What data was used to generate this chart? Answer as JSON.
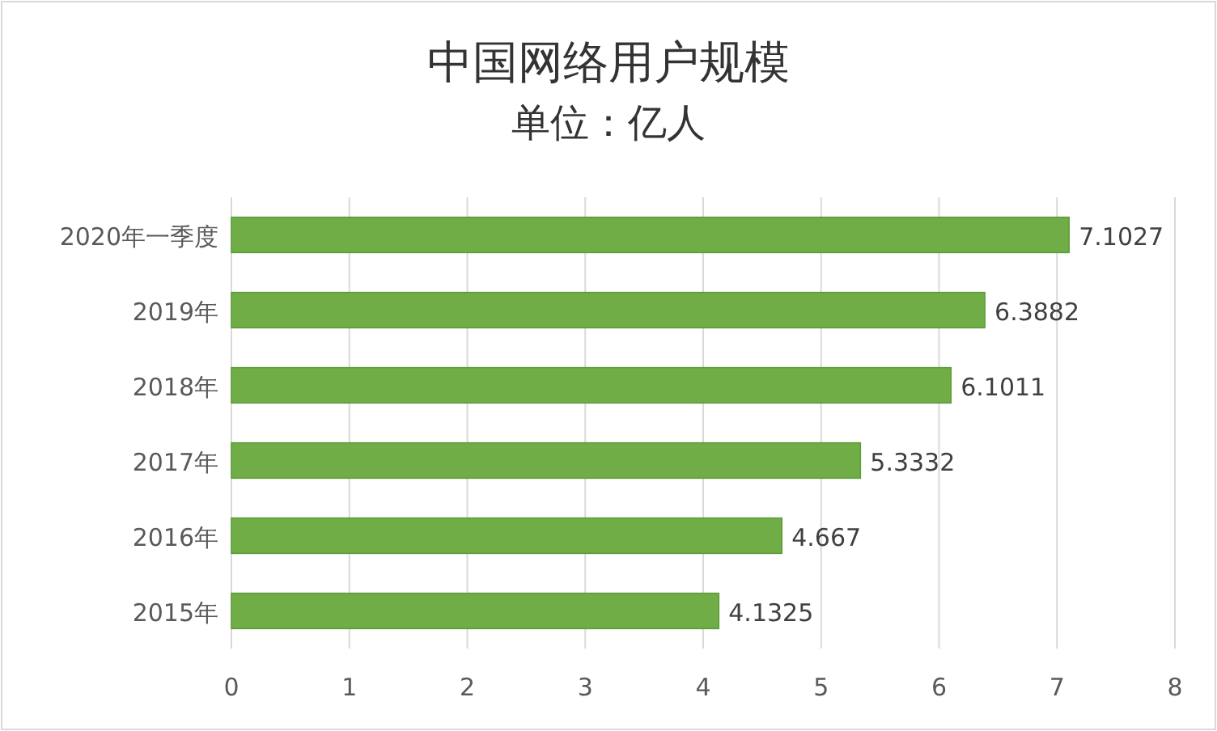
{
  "chart_data": {
    "type": "bar",
    "orientation": "horizontal",
    "title": "中国网络用户规模",
    "subtitle": "单位：亿人",
    "categories": [
      "2020年一季度",
      "2019年",
      "2018年",
      "2017年",
      "2016年",
      "2015年"
    ],
    "values": [
      7.1027,
      6.3882,
      6.1011,
      5.3332,
      4.667,
      4.1325
    ],
    "color": "#70ad47",
    "data_labels": true,
    "grid": "x",
    "xlim": [
      0,
      8
    ],
    "xticks": [
      0,
      1,
      2,
      3,
      4,
      5,
      6,
      7,
      8
    ]
  }
}
